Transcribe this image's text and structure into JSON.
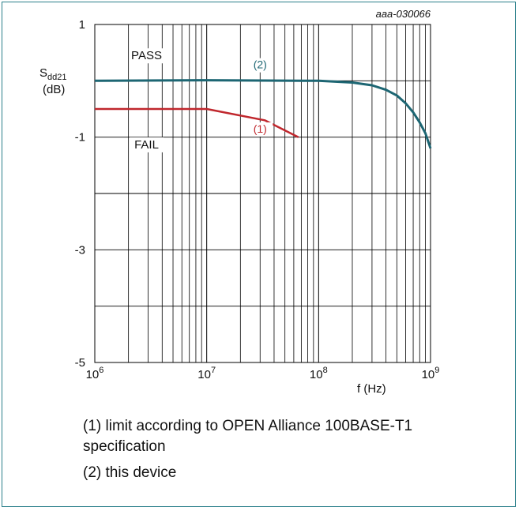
{
  "figure_id": "aaa-030066",
  "chart_data": {
    "type": "line",
    "title": "",
    "xlabel": "f (Hz)",
    "ylabel_main": "S",
    "ylabel_sub": "dd21",
    "ylabel_unit": "(dB)",
    "x_scale": "log",
    "xlim": [
      1000000,
      1000000000
    ],
    "ylim": [
      -5,
      1
    ],
    "x_ticks": [
      {
        "value": 1000000,
        "base": "10",
        "exp": "6"
      },
      {
        "value": 10000000,
        "base": "10",
        "exp": "7"
      },
      {
        "value": 100000000,
        "base": "10",
        "exp": "8"
      },
      {
        "value": 1000000000,
        "base": "10",
        "exp": "9"
      }
    ],
    "y_ticks": [
      {
        "value": 1,
        "label": "1"
      },
      {
        "value": -1,
        "label": "-1"
      },
      {
        "value": -3,
        "label": "-3"
      },
      {
        "value": -5,
        "label": "-5"
      }
    ],
    "y_gridlines": [
      1,
      0,
      -1,
      -2,
      -3,
      -4,
      -5
    ],
    "grid": true,
    "series": [
      {
        "name": "(1)",
        "color": "#c0272d",
        "x": [
          1000000,
          10000000,
          33000000,
          66000000
        ],
        "y": [
          -0.5,
          -0.5,
          -0.7,
          -1.0
        ]
      },
      {
        "name": "(2)",
        "color": "#1d6673",
        "x": [
          1000000,
          10000000,
          100000000,
          200000000,
          300000000,
          400000000,
          500000000,
          600000000,
          700000000,
          800000000,
          900000000,
          1000000000
        ],
        "y": [
          0.0,
          0.01,
          0.0,
          -0.03,
          -0.08,
          -0.16,
          -0.26,
          -0.4,
          -0.56,
          -0.74,
          -0.93,
          -1.2
        ]
      }
    ],
    "annotations": [
      {
        "text": "PASS",
        "x": 2900000,
        "y": 0.38
      },
      {
        "text": "FAIL",
        "x": 2900000,
        "y": -1.2
      },
      {
        "text": "(2)",
        "x": 30000000,
        "y": 0.22,
        "color": "#1d6673"
      },
      {
        "text": "(1)",
        "x": 30000000,
        "y": -0.92,
        "color": "#c0272d"
      }
    ]
  },
  "caption": {
    "line1": "(1) limit according to OPEN Alliance 100BASE-T1",
    "line2": "specification",
    "line3": "(2) this device"
  }
}
